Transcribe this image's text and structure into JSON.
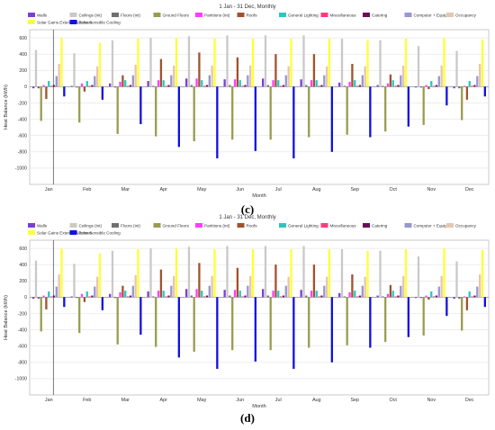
{
  "chart_data": [
    {
      "type": "bar",
      "title": "1 Jan - 31 Dec, Monthly",
      "xlabel": "Month",
      "ylabel": "Heat Balance (kWh)",
      "ylim": [
        -1200,
        700
      ],
      "yticks": [
        "-1000",
        "-800",
        "-600",
        "-400",
        "-200",
        "0",
        "200",
        "400",
        "600"
      ],
      "grid": true,
      "legend_position": "top",
      "categories": [
        "Jan",
        "Feb",
        "Mar",
        "Apr",
        "May",
        "Jun",
        "Jul",
        "Aug",
        "Sep",
        "Oct",
        "Nov",
        "Dec"
      ],
      "series": [
        {
          "name": "Walls",
          "color": "#7b3fd0",
          "values": [
            -20,
            10,
            40,
            70,
            100,
            90,
            100,
            90,
            50,
            20,
            -10,
            -20
          ]
        },
        {
          "name": "Ceilings (int)",
          "color": "#c9c9c9",
          "values": [
            450,
            410,
            570,
            600,
            620,
            630,
            630,
            630,
            590,
            570,
            500,
            440
          ]
        },
        {
          "name": "Floors (int)",
          "color": "#6f6f6f",
          "values": [
            -20,
            -10,
            -10,
            10,
            20,
            20,
            20,
            20,
            10,
            10,
            -10,
            -20
          ]
        },
        {
          "name": "Ground Floors",
          "color": "#9b9b4f",
          "values": [
            -420,
            -440,
            -580,
            -610,
            -670,
            -650,
            -650,
            -620,
            -590,
            -550,
            -470,
            -410
          ]
        },
        {
          "name": "Partitions (int)",
          "color": "#ff3dff",
          "values": [
            20,
            40,
            60,
            80,
            100,
            90,
            80,
            80,
            60,
            40,
            20,
            10
          ]
        },
        {
          "name": "Roofs",
          "color": "#a0522d",
          "values": [
            -150,
            -60,
            140,
            340,
            420,
            360,
            400,
            400,
            280,
            150,
            -30,
            -160
          ]
        },
        {
          "name": "General Lighting",
          "color": "#2cc6c0",
          "values": [
            70,
            70,
            80,
            80,
            80,
            80,
            80,
            80,
            80,
            80,
            70,
            70
          ]
        },
        {
          "name": "Miscellaneous",
          "color": "#ff3a7c",
          "values": [
            10,
            10,
            10,
            10,
            10,
            10,
            10,
            10,
            10,
            10,
            10,
            10
          ]
        },
        {
          "name": "Catering",
          "color": "#6b0f5a",
          "values": [
            20,
            20,
            20,
            20,
            20,
            20,
            20,
            20,
            20,
            20,
            20,
            20
          ]
        },
        {
          "name": "Computer + Equip",
          "color": "#9797d2",
          "values": [
            130,
            130,
            140,
            140,
            140,
            140,
            140,
            140,
            140,
            140,
            130,
            130
          ]
        },
        {
          "name": "Occupancy",
          "color": "#e6c7ad",
          "values": [
            280,
            250,
            270,
            260,
            260,
            260,
            250,
            250,
            250,
            260,
            260,
            280
          ]
        },
        {
          "name": "Solar Gains Exterior Windows",
          "color": "#ffff33",
          "values": [
            600,
            540,
            590,
            600,
            590,
            590,
            590,
            590,
            570,
            590,
            600,
            580
          ]
        },
        {
          "name": "Zone Sensible Cooling",
          "color": "#1010e0",
          "values": [
            -120,
            -160,
            -460,
            -740,
            -880,
            -790,
            -880,
            -800,
            -620,
            -490,
            -230,
            -120
          ]
        }
      ]
    },
    {
      "type": "bar",
      "title": "1 Jan - 31 Dec, Monthly",
      "xlabel": "Month",
      "ylabel": "Heat Balance (kWh)",
      "ylim": [
        -1200,
        700
      ],
      "yticks": [
        "-1000",
        "-800",
        "-600",
        "-400",
        "-200",
        "0",
        "200",
        "400",
        "600"
      ],
      "grid": true,
      "legend_position": "top",
      "categories": [
        "Jan",
        "Feb",
        "Mar",
        "Apr",
        "May",
        "Jun",
        "Jul",
        "Aug",
        "Sep",
        "Oct",
        "Nov",
        "Dec"
      ],
      "series": [
        {
          "name": "Walls",
          "color": "#7b3fd0",
          "values": [
            -20,
            10,
            40,
            70,
            100,
            90,
            100,
            90,
            50,
            20,
            -10,
            -20
          ]
        },
        {
          "name": "Ceilings (int)",
          "color": "#c9c9c9",
          "values": [
            450,
            410,
            570,
            600,
            620,
            630,
            630,
            630,
            590,
            570,
            500,
            440
          ]
        },
        {
          "name": "Floors (int)",
          "color": "#6f6f6f",
          "values": [
            -20,
            -10,
            -10,
            10,
            20,
            20,
            20,
            20,
            10,
            10,
            -10,
            -20
          ]
        },
        {
          "name": "Ground Floors",
          "color": "#9b9b4f",
          "values": [
            -420,
            -440,
            -580,
            -610,
            -670,
            -650,
            -650,
            -620,
            -590,
            -550,
            -470,
            -410
          ]
        },
        {
          "name": "Partitions (int)",
          "color": "#ff3dff",
          "values": [
            20,
            40,
            60,
            80,
            100,
            90,
            80,
            80,
            60,
            40,
            20,
            10
          ]
        },
        {
          "name": "Roofs",
          "color": "#a0522d",
          "values": [
            -150,
            -60,
            140,
            340,
            420,
            360,
            400,
            400,
            280,
            150,
            -30,
            -160
          ]
        },
        {
          "name": "General Lighting",
          "color": "#2cc6c0",
          "values": [
            70,
            70,
            80,
            80,
            80,
            80,
            80,
            80,
            80,
            80,
            70,
            70
          ]
        },
        {
          "name": "Miscellaneous",
          "color": "#ff3a7c",
          "values": [
            10,
            10,
            10,
            10,
            10,
            10,
            10,
            10,
            10,
            10,
            10,
            10
          ]
        },
        {
          "name": "Catering",
          "color": "#6b0f5a",
          "values": [
            20,
            20,
            20,
            20,
            20,
            20,
            20,
            20,
            20,
            20,
            20,
            20
          ]
        },
        {
          "name": "Computer + Equip",
          "color": "#9797d2",
          "values": [
            130,
            130,
            140,
            140,
            140,
            140,
            140,
            140,
            140,
            140,
            130,
            130
          ]
        },
        {
          "name": "Occupancy",
          "color": "#e6c7ad",
          "values": [
            280,
            250,
            270,
            260,
            260,
            260,
            250,
            250,
            250,
            260,
            260,
            280
          ]
        },
        {
          "name": "Solar Gains Exterior Windows",
          "color": "#ffff33",
          "values": [
            600,
            540,
            590,
            600,
            590,
            590,
            590,
            590,
            570,
            590,
            600,
            580
          ]
        },
        {
          "name": "Zone Sensible Cooling",
          "color": "#1010e0",
          "values": [
            -120,
            -160,
            -460,
            -740,
            -880,
            -790,
            -880,
            -800,
            -620,
            -490,
            -230,
            -120
          ]
        }
      ]
    }
  ],
  "captions": [
    "(c)",
    "(d)"
  ]
}
